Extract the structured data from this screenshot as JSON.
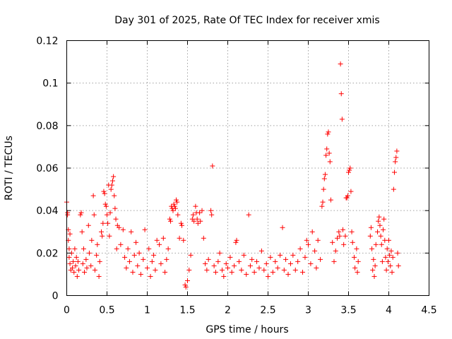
{
  "chart_data": {
    "type": "scatter",
    "title": "Day 301 of 2025, Rate Of TEC Index for receiver xmis",
    "xlabel": "GPS time / hours",
    "ylabel": "ROTI / TECUs",
    "xlim": [
      0,
      4.5
    ],
    "ylim": [
      0,
      0.12
    ],
    "grid": true,
    "x_ticks": [
      0,
      0.5,
      1,
      1.5,
      2,
      2.5,
      3,
      3.5,
      4,
      4.5
    ],
    "x_tick_labels": [
      "0",
      "0.5",
      "1",
      "1.5",
      "2",
      "2.5",
      "3",
      "3.5",
      "4",
      "4.5"
    ],
    "y_ticks": [
      0,
      0.02,
      0.04,
      0.06,
      0.08,
      0.1,
      0.12
    ],
    "y_tick_labels": [
      "0",
      "0.02",
      "0.04",
      "0.06",
      "0.08",
      "0.1",
      "0.12"
    ],
    "marker": "plus",
    "color": "#ff0000",
    "series": [
      {
        "name": "ROTI",
        "points": [
          [
            0.0,
            0.044
          ],
          [
            0.01,
            0.039
          ],
          [
            0.01,
            0.038
          ],
          [
            0.02,
            0.031
          ],
          [
            0.02,
            0.026
          ],
          [
            0.03,
            0.022
          ],
          [
            0.03,
            0.018
          ],
          [
            0.04,
            0.029
          ],
          [
            0.04,
            0.015
          ],
          [
            0.05,
            0.012
          ],
          [
            0.06,
            0.02
          ],
          [
            0.07,
            0.013
          ],
          [
            0.08,
            0.016
          ],
          [
            0.09,
            0.011
          ],
          [
            0.1,
            0.022
          ],
          [
            0.11,
            0.014
          ],
          [
            0.12,
            0.018
          ],
          [
            0.13,
            0.009
          ],
          [
            0.14,
            0.016
          ],
          [
            0.15,
            0.012
          ],
          [
            0.17,
            0.038
          ],
          [
            0.18,
            0.039
          ],
          [
            0.19,
            0.03
          ],
          [
            0.2,
            0.015
          ],
          [
            0.21,
            0.022
          ],
          [
            0.22,
            0.011
          ],
          [
            0.24,
            0.017
          ],
          [
            0.25,
            0.013
          ],
          [
            0.27,
            0.033
          ],
          [
            0.28,
            0.02
          ],
          [
            0.3,
            0.014
          ],
          [
            0.31,
            0.026
          ],
          [
            0.33,
            0.047
          ],
          [
            0.34,
            0.038
          ],
          [
            0.35,
            0.012
          ],
          [
            0.37,
            0.019
          ],
          [
            0.38,
            0.024
          ],
          [
            0.4,
            0.009
          ],
          [
            0.41,
            0.016
          ],
          [
            0.43,
            0.03
          ],
          [
            0.44,
            0.028
          ],
          [
            0.45,
            0.034
          ],
          [
            0.46,
            0.049
          ],
          [
            0.47,
            0.048
          ],
          [
            0.48,
            0.043
          ],
          [
            0.49,
            0.042
          ],
          [
            0.5,
            0.038
          ],
          [
            0.51,
            0.034
          ],
          [
            0.52,
            0.052
          ],
          [
            0.53,
            0.028
          ],
          [
            0.54,
            0.039
          ],
          [
            0.55,
            0.05
          ],
          [
            0.56,
            0.052
          ],
          [
            0.57,
            0.054
          ],
          [
            0.58,
            0.056
          ],
          [
            0.59,
            0.047
          ],
          [
            0.6,
            0.041
          ],
          [
            0.61,
            0.036
          ],
          [
            0.62,
            0.022
          ],
          [
            0.63,
            0.033
          ],
          [
            0.65,
            0.032
          ],
          [
            0.67,
            0.024
          ],
          [
            0.7,
            0.031
          ],
          [
            0.72,
            0.018
          ],
          [
            0.74,
            0.013
          ],
          [
            0.76,
            0.022
          ],
          [
            0.78,
            0.016
          ],
          [
            0.8,
            0.03
          ],
          [
            0.82,
            0.011
          ],
          [
            0.84,
            0.019
          ],
          [
            0.86,
            0.025
          ],
          [
            0.88,
            0.014
          ],
          [
            0.9,
            0.02
          ],
          [
            0.92,
            0.01
          ],
          [
            0.95,
            0.017
          ],
          [
            0.97,
            0.031
          ],
          [
            1.0,
            0.013
          ],
          [
            1.02,
            0.022
          ],
          [
            1.04,
            0.009
          ],
          [
            1.06,
            0.016
          ],
          [
            1.08,
            0.019
          ],
          [
            1.1,
            0.012
          ],
          [
            1.12,
            0.026
          ],
          [
            1.15,
            0.024
          ],
          [
            1.17,
            0.015
          ],
          [
            1.2,
            0.027
          ],
          [
            1.22,
            0.011
          ],
          [
            1.24,
            0.017
          ],
          [
            1.26,
            0.022
          ],
          [
            1.28,
            0.036
          ],
          [
            1.29,
            0.035
          ],
          [
            1.3,
            0.042
          ],
          [
            1.31,
            0.041
          ],
          [
            1.32,
            0.04
          ],
          [
            1.33,
            0.043
          ],
          [
            1.34,
            0.042
          ],
          [
            1.35,
            0.041
          ],
          [
            1.36,
            0.045
          ],
          [
            1.37,
            0.044
          ],
          [
            1.38,
            0.038
          ],
          [
            1.4,
            0.027
          ],
          [
            1.42,
            0.034
          ],
          [
            1.43,
            0.033
          ],
          [
            1.45,
            0.026
          ],
          [
            1.47,
            0.005
          ],
          [
            1.48,
            0.004
          ],
          [
            1.5,
            0.007
          ],
          [
            1.52,
            0.012
          ],
          [
            1.54,
            0.019
          ],
          [
            1.56,
            0.036
          ],
          [
            1.57,
            0.038
          ],
          [
            1.58,
            0.035
          ],
          [
            1.6,
            0.042
          ],
          [
            1.61,
            0.039
          ],
          [
            1.62,
            0.036
          ],
          [
            1.63,
            0.034
          ],
          [
            1.65,
            0.039
          ],
          [
            1.66,
            0.035
          ],
          [
            1.68,
            0.04
          ],
          [
            1.7,
            0.027
          ],
          [
            1.72,
            0.015
          ],
          [
            1.74,
            0.012
          ],
          [
            1.76,
            0.017
          ],
          [
            1.79,
            0.04
          ],
          [
            1.8,
            0.038
          ],
          [
            1.81,
            0.061
          ],
          [
            1.83,
            0.014
          ],
          [
            1.85,
            0.011
          ],
          [
            1.88,
            0.016
          ],
          [
            1.9,
            0.02
          ],
          [
            1.93,
            0.012
          ],
          [
            1.95,
            0.009
          ],
          [
            1.98,
            0.015
          ],
          [
            2.0,
            0.013
          ],
          [
            2.03,
            0.018
          ],
          [
            2.05,
            0.011
          ],
          [
            2.08,
            0.014
          ],
          [
            2.1,
            0.025
          ],
          [
            2.11,
            0.026
          ],
          [
            2.14,
            0.016
          ],
          [
            2.17,
            0.012
          ],
          [
            2.2,
            0.019
          ],
          [
            2.23,
            0.01
          ],
          [
            2.26,
            0.038
          ],
          [
            2.28,
            0.014
          ],
          [
            2.3,
            0.017
          ],
          [
            2.33,
            0.011
          ],
          [
            2.36,
            0.016
          ],
          [
            2.39,
            0.013
          ],
          [
            2.42,
            0.021
          ],
          [
            2.45,
            0.012
          ],
          [
            2.48,
            0.015
          ],
          [
            2.5,
            0.009
          ],
          [
            2.53,
            0.018
          ],
          [
            2.56,
            0.011
          ],
          [
            2.59,
            0.016
          ],
          [
            2.62,
            0.013
          ],
          [
            2.65,
            0.019
          ],
          [
            2.68,
            0.032
          ],
          [
            2.7,
            0.012
          ],
          [
            2.72,
            0.017
          ],
          [
            2.75,
            0.01
          ],
          [
            2.78,
            0.015
          ],
          [
            2.81,
            0.019
          ],
          [
            2.84,
            0.012
          ],
          [
            2.87,
            0.016
          ],
          [
            2.9,
            0.022
          ],
          [
            2.93,
            0.011
          ],
          [
            2.96,
            0.018
          ],
          [
            2.98,
            0.026
          ],
          [
            3.0,
            0.024
          ],
          [
            3.03,
            0.015
          ],
          [
            3.05,
            0.03
          ],
          [
            3.08,
            0.021
          ],
          [
            3.1,
            0.013
          ],
          [
            3.12,
            0.026
          ],
          [
            3.15,
            0.017
          ],
          [
            3.17,
            0.042
          ],
          [
            3.18,
            0.044
          ],
          [
            3.19,
            0.05
          ],
          [
            3.2,
            0.055
          ],
          [
            3.21,
            0.057
          ],
          [
            3.22,
            0.066
          ],
          [
            3.23,
            0.069
          ],
          [
            3.24,
            0.076
          ],
          [
            3.25,
            0.077
          ],
          [
            3.26,
            0.067
          ],
          [
            3.27,
            0.063
          ],
          [
            3.28,
            0.045
          ],
          [
            3.3,
            0.025
          ],
          [
            3.32,
            0.016
          ],
          [
            3.34,
            0.021
          ],
          [
            3.36,
            0.027
          ],
          [
            3.38,
            0.03
          ],
          [
            3.39,
            0.028
          ],
          [
            3.4,
            0.109
          ],
          [
            3.41,
            0.095
          ],
          [
            3.42,
            0.083
          ],
          [
            3.43,
            0.031
          ],
          [
            3.44,
            0.024
          ],
          [
            3.46,
            0.028
          ],
          [
            3.47,
            0.046
          ],
          [
            3.48,
            0.046
          ],
          [
            3.49,
            0.047
          ],
          [
            3.5,
            0.058
          ],
          [
            3.51,
            0.059
          ],
          [
            3.52,
            0.06
          ],
          [
            3.53,
            0.049
          ],
          [
            3.54,
            0.03
          ],
          [
            3.55,
            0.025
          ],
          [
            3.57,
            0.018
          ],
          [
            3.58,
            0.013
          ],
          [
            3.6,
            0.022
          ],
          [
            3.61,
            0.011
          ],
          [
            3.62,
            0.016
          ],
          [
            3.77,
            0.028
          ],
          [
            3.78,
            0.032
          ],
          [
            3.79,
            0.022
          ],
          [
            3.8,
            0.012
          ],
          [
            3.81,
            0.017
          ],
          [
            3.82,
            0.009
          ],
          [
            3.83,
            0.014
          ],
          [
            3.84,
            0.024
          ],
          [
            3.86,
            0.03
          ],
          [
            3.87,
            0.035
          ],
          [
            3.88,
            0.037
          ],
          [
            3.89,
            0.033
          ],
          [
            3.9,
            0.028
          ],
          [
            3.91,
            0.024
          ],
          [
            3.92,
            0.016
          ],
          [
            3.93,
            0.031
          ],
          [
            3.94,
            0.036
          ],
          [
            3.95,
            0.026
          ],
          [
            3.96,
            0.018
          ],
          [
            3.97,
            0.012
          ],
          [
            3.98,
            0.022
          ],
          [
            3.99,
            0.016
          ],
          [
            4.0,
            0.026
          ],
          [
            4.01,
            0.019
          ],
          [
            4.02,
            0.014
          ],
          [
            4.03,
            0.021
          ],
          [
            4.04,
            0.011
          ],
          [
            4.05,
            0.018
          ],
          [
            4.06,
            0.05
          ],
          [
            4.07,
            0.058
          ],
          [
            4.08,
            0.063
          ],
          [
            4.09,
            0.065
          ],
          [
            4.1,
            0.068
          ],
          [
            4.11,
            0.02
          ],
          [
            4.12,
            0.014
          ]
        ]
      }
    ]
  }
}
